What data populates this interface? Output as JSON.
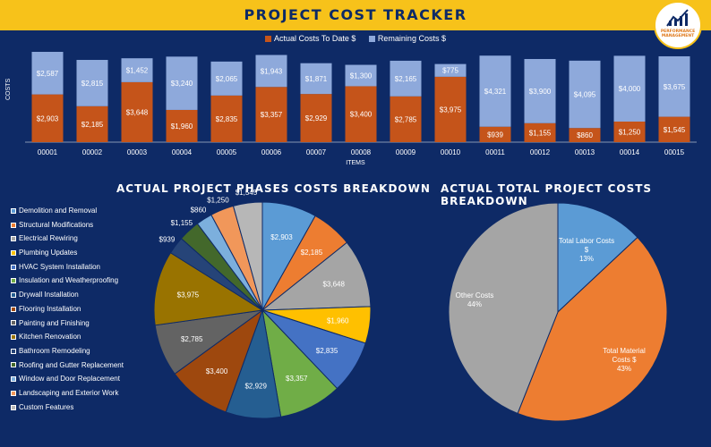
{
  "page": {
    "title": "PROJECT COST TRACKER",
    "logo_text": "PERFORMANCE MANAGEMENT"
  },
  "colors": {
    "background": "#0e2a66",
    "title_bar": "#f7c21a",
    "actual": "#c5541a",
    "remaining": "#8ea9db"
  },
  "bar_chart": {
    "legend": [
      "Actual Costs To Date $",
      "Remaining Costs $"
    ],
    "ylabel": "COSTS",
    "xlabel": "ITEMS"
  },
  "pie1": {
    "title": "ACTUAL PROJECT PHASES COSTS BREAKDOWN"
  },
  "pie2": {
    "title": "ACTUAL TOTAL PROJECT COSTS BREAKDOWN"
  },
  "chart_data": [
    {
      "type": "bar",
      "stacked": true,
      "categories": [
        "00001",
        "00002",
        "00003",
        "00004",
        "00005",
        "00006",
        "00007",
        "00008",
        "00009",
        "00010",
        "00011",
        "00012",
        "00013",
        "00014",
        "00015"
      ],
      "series": [
        {
          "name": "Actual Costs To Date $",
          "color": "#c5541a",
          "values": [
            2903,
            2185,
            3648,
            1960,
            2835,
            3357,
            2929,
            3400,
            2785,
            3975,
            939,
            1155,
            860,
            1250,
            1545
          ],
          "labels": [
            "$2,903",
            "$2,185",
            "$3,648",
            "$1,960",
            "$2,835",
            "$3,357",
            "$2,929",
            "$3,400",
            "$2,785",
            "$3,975",
            "$939",
            "$1,155",
            "$860",
            "$1,250",
            "$1,545"
          ]
        },
        {
          "name": "Remaining Costs $",
          "color": "#8ea9db",
          "values": [
            2587,
            2815,
            1452,
            3240,
            2065,
            1943,
            1871,
            1300,
            2165,
            775,
            4321,
            3900,
            4095,
            4000,
            3675
          ],
          "labels": [
            "$2,587",
            "$2,815",
            "$1,452",
            "$3,240",
            "$2,065",
            "$1,943",
            "$1,871",
            "$1,300",
            "$2,165",
            "$775",
            "$4,321",
            "$3,900",
            "$4,095",
            "$4,000",
            "$3,675"
          ]
        }
      ],
      "xlabel": "ITEMS",
      "ylabel": "COSTS",
      "legend": "top"
    },
    {
      "type": "pie",
      "title": "ACTUAL PROJECT PHASES COSTS BREAKDOWN",
      "legend": "left",
      "slices": [
        {
          "label": "Demolition and Removal",
          "value": 2903,
          "text": "$2,903",
          "color": "#5b9bd5"
        },
        {
          "label": "Structural Modifications",
          "value": 2185,
          "text": "$2,185",
          "color": "#ed7d31"
        },
        {
          "label": "Electrical Rewiring",
          "value": 3648,
          "text": "$3,648",
          "color": "#a5a5a5"
        },
        {
          "label": "Plumbing Updates",
          "value": 1960,
          "text": "$1,960",
          "color": "#ffc000"
        },
        {
          "label": "HVAC System Installation",
          "value": 2835,
          "text": "$2,835",
          "color": "#4472c4"
        },
        {
          "label": "Insulation and Weatherproofing",
          "value": 3357,
          "text": "$3,357",
          "color": "#70ad47"
        },
        {
          "label": "Drywall Installation",
          "value": 2929,
          "text": "$2,929",
          "color": "#255e91"
        },
        {
          "label": "Flooring Installation",
          "value": 3400,
          "text": "$3,400",
          "color": "#9e480e"
        },
        {
          "label": "Painting and Finishing",
          "value": 2785,
          "text": "$2,785",
          "color": "#636363"
        },
        {
          "label": "Kitchen Renovation",
          "value": 3975,
          "text": "$3,975",
          "color": "#997300"
        },
        {
          "label": "Bathroom Remodeling",
          "value": 939,
          "text": "$939",
          "color": "#264478"
        },
        {
          "label": "Roofing and Gutter Replacement",
          "value": 1155,
          "text": "$1,155",
          "color": "#43682b"
        },
        {
          "label": "Window and Door Replacement",
          "value": 860,
          "text": "$860",
          "color": "#7cafdd"
        },
        {
          "label": "Landscaping and Exterior Work",
          "value": 1250,
          "text": "$1,250",
          "color": "#f1975a"
        },
        {
          "label": "Custom Features",
          "value": 1545,
          "text": "$1,545",
          "color": "#b7b7b7"
        }
      ]
    },
    {
      "type": "pie",
      "title": "ACTUAL TOTAL PROJECT COSTS BREAKDOWN",
      "slices": [
        {
          "label": "Total Labor Costs $",
          "value": 13,
          "text": "13%",
          "color": "#5b9bd5"
        },
        {
          "label": "Total Material Costs $",
          "value": 43,
          "text": "43%",
          "color": "#ed7d31"
        },
        {
          "label": "Other Costs",
          "value": 44,
          "text": "44%",
          "color": "#a5a5a5"
        }
      ]
    }
  ]
}
